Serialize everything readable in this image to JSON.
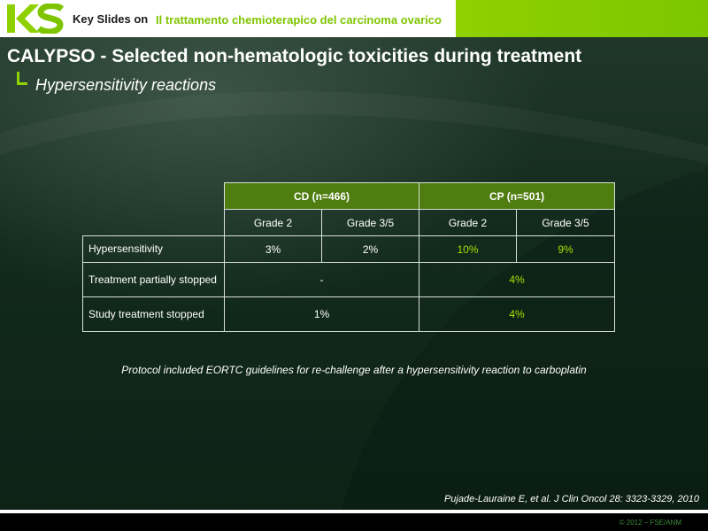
{
  "header": {
    "brand": "Key Slides on",
    "topic": "Il trattamento chemioterapico del carcinoma ovarico",
    "logo_icon": "ks-logo-icon"
  },
  "slide": {
    "title": "CALYPSO - Selected non-hematologic toxicities during treatment",
    "subtitle": "Hypersensitivity reactions"
  },
  "table": {
    "groups": [
      "CD (n=466)",
      "CP (n=501)"
    ],
    "grades": [
      "Grade 2",
      "Grade 3/5",
      "Grade 2",
      "Grade 3/5"
    ],
    "rows": [
      {
        "label": "Hypersensitivity",
        "values": [
          "3%",
          "2%",
          "10%",
          "9%"
        ]
      },
      {
        "label": "Treatment partially stopped",
        "merged": [
          "-",
          "4%"
        ]
      },
      {
        "label": "Study treatment stopped",
        "merged": [
          "1%",
          "4%"
        ]
      }
    ],
    "highlight_color": "#a5e000",
    "header_color": "#4f7d0f"
  },
  "note": "Protocol included EORTC guidelines for re-challenge after a hypersensitivity reaction to carboplatin",
  "citation": "Pujade-Lauraine E, et al. J Clin Oncol 28: 3323-3329, 2010",
  "copyright": "© 2012 – FSE/ANM"
}
